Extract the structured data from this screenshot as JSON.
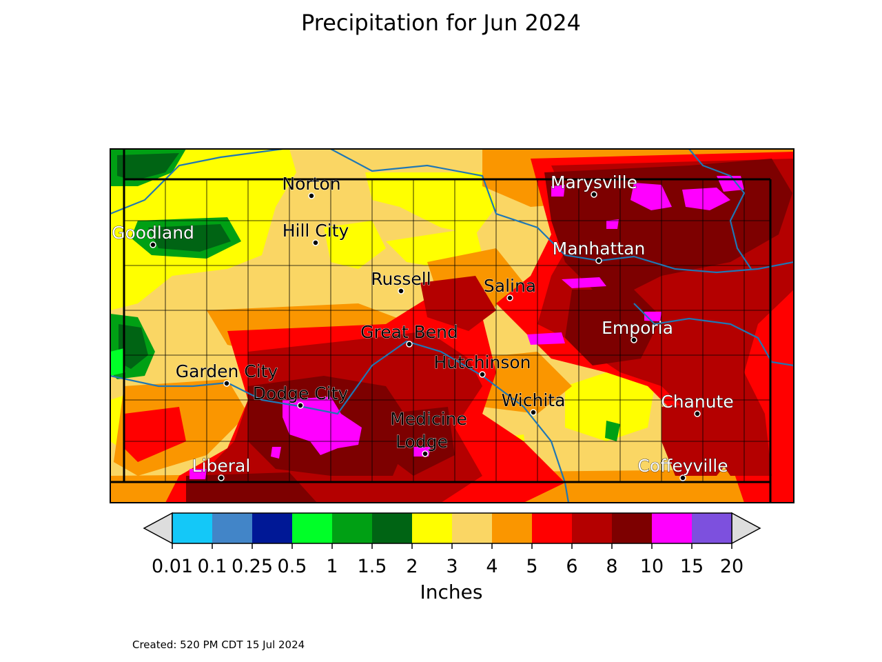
{
  "title": "Precipitation for Jun 2024",
  "colorbar": {
    "unit_label": "Inches",
    "ticks": [
      "0.01",
      "0.1",
      "0.25",
      "0.5",
      "1",
      "1.5",
      "2",
      "3",
      "4",
      "5",
      "6",
      "8",
      "10",
      "15",
      "20"
    ],
    "colors": [
      "#14c8f8",
      "#4285c8",
      "#001896",
      "#00ff28",
      "#00a014",
      "#006414",
      "#ffff00",
      "#fad664",
      "#fa9600",
      "#ff0000",
      "#b40000",
      "#7d0000",
      "#ff00ff",
      "#7d50de"
    ],
    "extend_color": "#dddddd"
  },
  "cities": [
    {
      "name": "Norton"
    },
    {
      "name": "Marysville"
    },
    {
      "name": "Goodland"
    },
    {
      "name": "Hill City"
    },
    {
      "name": "Manhattan"
    },
    {
      "name": "Russell"
    },
    {
      "name": "Salina"
    },
    {
      "name": "Emporia"
    },
    {
      "name": "Great Bend"
    },
    {
      "name": "Hutchinson"
    },
    {
      "name": "Garden City"
    },
    {
      "name": "Dodge City"
    },
    {
      "name": "Wichita"
    },
    {
      "name": "Chanute"
    },
    {
      "name": "Medicine"
    },
    {
      "name": "Lodge"
    },
    {
      "name": "Liberal"
    },
    {
      "name": "Coffeyville"
    }
  ],
  "footer": {
    "created": "Created: 520 PM CDT 15 Jul 2024"
  }
}
